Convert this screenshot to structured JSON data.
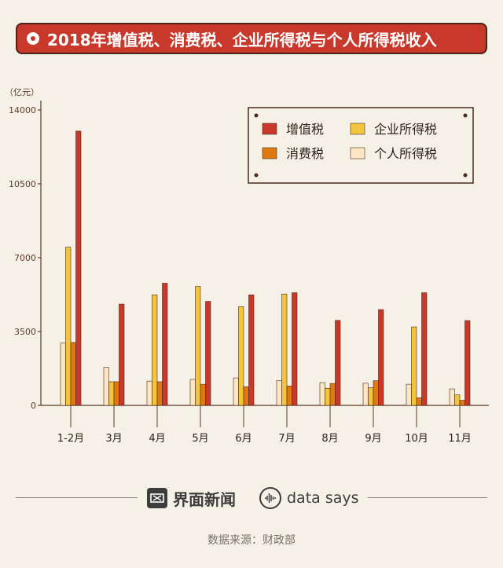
{
  "title": "2018年增值税、消费税、企业所得税与个人所得税收入",
  "chart_data": {
    "type": "bar",
    "unit_label": "（亿元）",
    "ylim": [
      0,
      14000
    ],
    "yticks": [
      0,
      3500,
      7000,
      10500,
      14000
    ],
    "categories": [
      "1-2月",
      "3月",
      "4月",
      "5月",
      "6月",
      "7月",
      "8月",
      "9月",
      "10月",
      "11月"
    ],
    "series": [
      {
        "name": "个人所得税",
        "color": "#fde6c4",
        "values": [
          2950,
          1800,
          1150,
          1230,
          1300,
          1180,
          1080,
          1050,
          1000,
          780
        ]
      },
      {
        "name": "企业所得税",
        "color": "#f2c53d",
        "values": [
          7500,
          1120,
          5240,
          5640,
          4680,
          5280,
          810,
          840,
          3720,
          500
        ]
      },
      {
        "name": "消费税",
        "color": "#e07a10",
        "values": [
          2980,
          1120,
          1120,
          1000,
          880,
          920,
          1040,
          1170,
          360,
          240
        ]
      },
      {
        "name": "增值税",
        "color": "#c8392b",
        "values": [
          13000,
          4800,
          5790,
          4930,
          5240,
          5340,
          4030,
          4540,
          5340,
          4020
        ]
      }
    ],
    "legend": {
      "position": "top-right",
      "entries": [
        {
          "label": "增值税",
          "color": "#c8392b"
        },
        {
          "label": "企业所得税",
          "color": "#f2c53d"
        },
        {
          "label": "消费税",
          "color": "#e07a10"
        },
        {
          "label": "个人所得税",
          "color": "#fde6c4"
        }
      ]
    }
  },
  "footer": {
    "brand": "界面新闻",
    "brand_icon": "jiemian-logo-icon",
    "data_says": "data says",
    "data_says_icon": "data-says-logo-icon",
    "source": "数据来源：财政部"
  }
}
